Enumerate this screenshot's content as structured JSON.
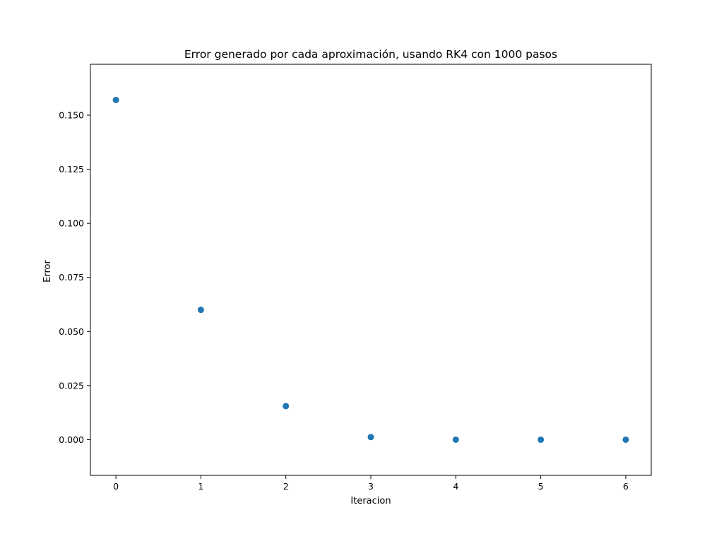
{
  "chart_data": {
    "type": "scatter",
    "title": "Error generado por cada aproximación, usando RK4 con 1000 pasos",
    "xlabel": "Iteracion",
    "ylabel": "Error",
    "xlim": [
      -0.3,
      6.3
    ],
    "ylim": [
      -0.0165,
      0.1735
    ],
    "x_ticks": [
      "0",
      "1",
      "2",
      "3",
      "4",
      "5",
      "6"
    ],
    "x_tick_values": [
      0,
      1,
      2,
      3,
      4,
      5,
      6
    ],
    "y_ticks": [
      "0.000",
      "0.025",
      "0.050",
      "0.075",
      "0.100",
      "0.125",
      "0.150"
    ],
    "y_tick_values": [
      0.0,
      0.025,
      0.05,
      0.075,
      0.1,
      0.125,
      0.15
    ],
    "x": [
      0,
      1,
      2,
      3,
      4,
      5,
      6
    ],
    "y": [
      0.157,
      0.06,
      0.0155,
      0.0012,
      0.0,
      0.0,
      0.0
    ],
    "marker_color": "#1f77b4",
    "grid": false,
    "legend": "none"
  }
}
